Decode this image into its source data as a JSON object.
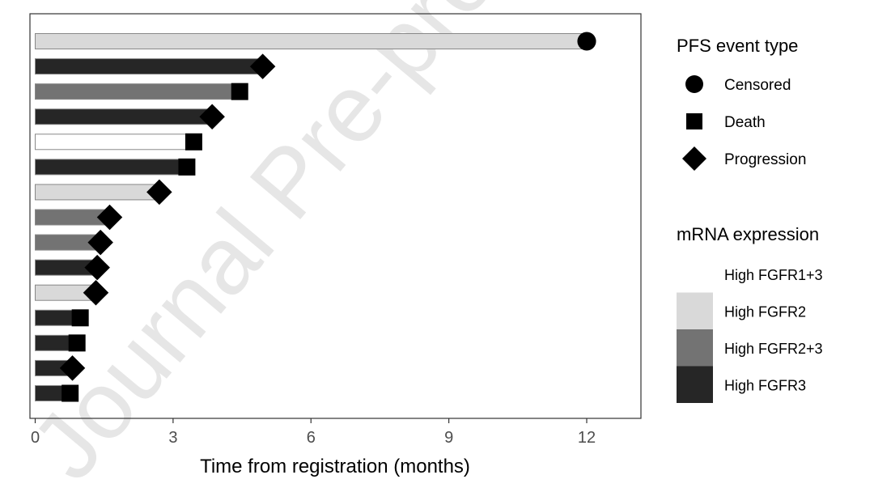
{
  "chart_data": {
    "type": "bar",
    "subtype": "swimmer",
    "orientation": "horizontal",
    "xlabel": "Time from registration (months)",
    "ylabel": "",
    "xlim": [
      -0.1,
      13.2
    ],
    "xticks": [
      0,
      3,
      6,
      9,
      12
    ],
    "grid": false,
    "legend_placement": "right",
    "watermark": "Journal Pre-proof",
    "event_legend": {
      "title": "PFS event type",
      "entries": [
        {
          "label": "Censored",
          "shape": "circle"
        },
        {
          "label": "Death",
          "shape": "square"
        },
        {
          "label": "Progression",
          "shape": "diamond"
        }
      ]
    },
    "fill_legend": {
      "title": "mRNA expression",
      "entries": [
        {
          "label": "High FGFR1+3",
          "color": "#ffffff"
        },
        {
          "label": "High FGFR2",
          "color": "#d9d9d9"
        },
        {
          "label": "High FGFR2+3",
          "color": "#737373"
        },
        {
          "label": "High FGFR3",
          "color": "#262626"
        }
      ]
    },
    "series": [
      {
        "value": 12.0,
        "group": "High FGFR2",
        "event": "Censored"
      },
      {
        "value": 4.95,
        "group": "High FGFR3",
        "event": "Progression"
      },
      {
        "value": 4.45,
        "group": "High FGFR2+3",
        "event": "Death"
      },
      {
        "value": 3.85,
        "group": "High FGFR3",
        "event": "Progression"
      },
      {
        "value": 3.45,
        "group": "High FGFR1+3",
        "event": "Death"
      },
      {
        "value": 3.3,
        "group": "High FGFR3",
        "event": "Death"
      },
      {
        "value": 2.7,
        "group": "High FGFR2",
        "event": "Progression"
      },
      {
        "value": 1.62,
        "group": "High FGFR2+3",
        "event": "Progression"
      },
      {
        "value": 1.42,
        "group": "High FGFR2+3",
        "event": "Progression"
      },
      {
        "value": 1.35,
        "group": "High FGFR3",
        "event": "Progression"
      },
      {
        "value": 1.32,
        "group": "High FGFR2",
        "event": "Progression"
      },
      {
        "value": 0.98,
        "group": "High FGFR3",
        "event": "Death"
      },
      {
        "value": 0.91,
        "group": "High FGFR3",
        "event": "Death"
      },
      {
        "value": 0.81,
        "group": "High FGFR3",
        "event": "Progression"
      },
      {
        "value": 0.76,
        "group": "High FGFR3",
        "event": "Death"
      }
    ]
  }
}
